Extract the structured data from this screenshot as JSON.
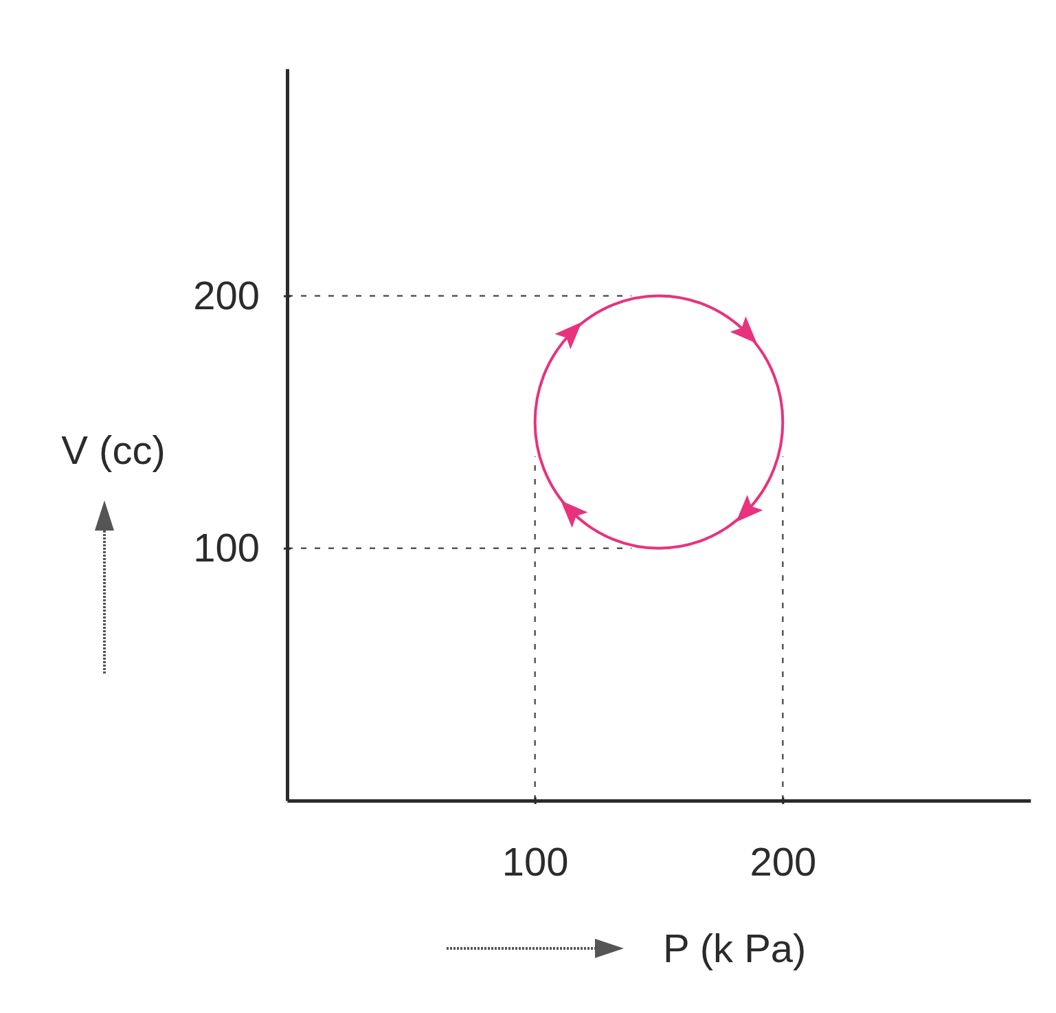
{
  "chart_data": {
    "type": "cycle",
    "x_label": "P (k Pa)",
    "y_label": "V (cc)",
    "xlim": [
      0,
      300
    ],
    "ylim": [
      0,
      290
    ],
    "xticks": [
      100,
      200
    ],
    "yticks": [
      100,
      200
    ],
    "cycle": {
      "x": [
        100,
        200
      ],
      "y": [
        100,
        200
      ],
      "direction": "clockwise"
    },
    "color": "#e8327c"
  }
}
